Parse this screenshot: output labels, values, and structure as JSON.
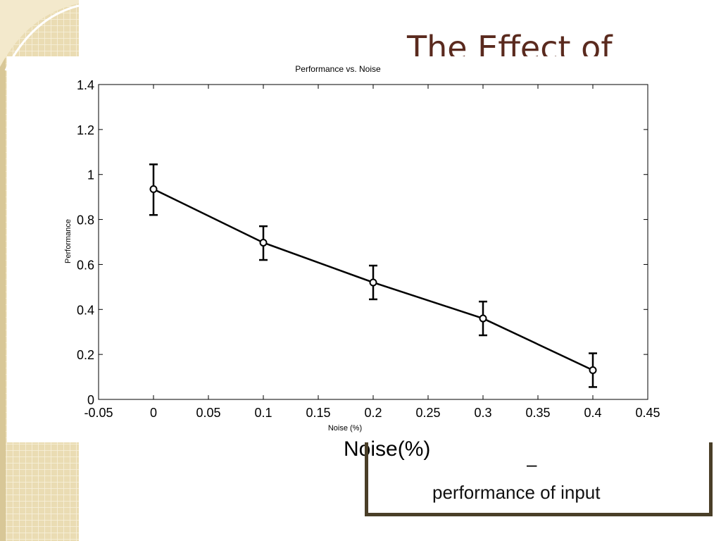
{
  "slide": {
    "title": "The Effect of",
    "caption_noise": "Noise(%)",
    "box_dash": "–",
    "box_text": "performance of input",
    "colors": {
      "title": "#5a2a1e",
      "border": "#4a3f28",
      "deco_beige": "#eadcb3",
      "deco_dark": "#cdbb8a"
    }
  },
  "chart_data": {
    "type": "line",
    "title": "Performance vs. Noise",
    "xlabel": "Noise (%)",
    "ylabel": "Performance",
    "xlim": [
      -0.05,
      0.45
    ],
    "ylim": [
      0,
      1.4
    ],
    "xticks": [
      "-0.05",
      "0",
      "0.05",
      "0.1",
      "0.15",
      "0.2",
      "0.25",
      "0.3",
      "0.35",
      "0.4",
      "0.45"
    ],
    "yticks": [
      "0",
      "0.2",
      "0.4",
      "0.6",
      "0.8",
      "1",
      "1.2",
      "1.4"
    ],
    "grid": false,
    "series": [
      {
        "x": [
          0,
          0.1,
          0.2,
          0.3,
          0.4
        ],
        "y": [
          0.935,
          0.697,
          0.52,
          0.36,
          0.13
        ],
        "err_low": [
          0.82,
          0.62,
          0.445,
          0.285,
          0.055
        ],
        "err_high": [
          1.045,
          0.77,
          0.595,
          0.435,
          0.205
        ],
        "marker": "circle",
        "color": "#000000"
      }
    ]
  }
}
